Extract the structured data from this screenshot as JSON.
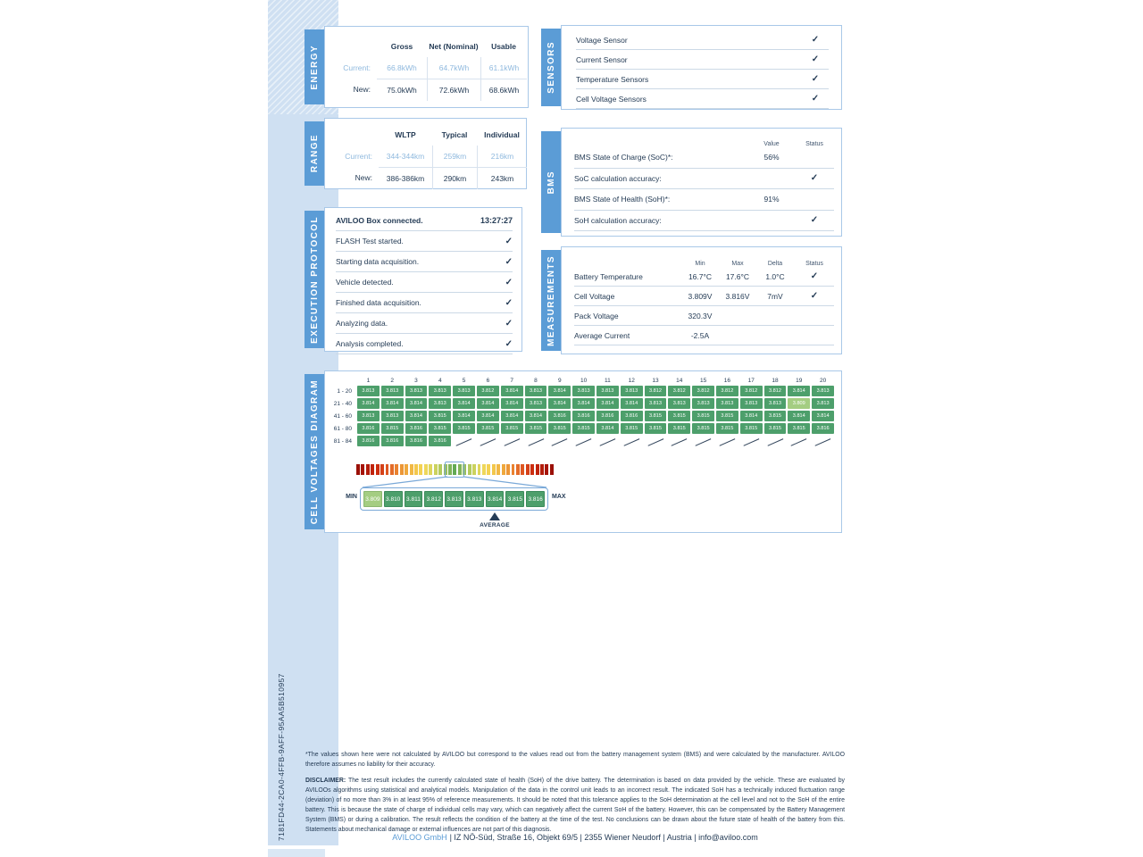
{
  "page": {
    "report_id": "7181FD44-2CA0-4FFB-9AFF-95AA5B510957",
    "footnote": "*The values shown here were not calculated by AVILOO but correspond to the values read out from the battery management system (BMS) and were calculated by the manufacturer. AVILOO therefore assumes no liability for their accuracy.",
    "disclaimer_label": "DISCLAIMER:",
    "disclaimer_text": " The test result includes the currently calculated state of health (SoH) of the drive battery. The determination is based on data provided by the vehicle. These are evaluated by AVILOOs algorithms using statistical and analytical models. Manipulation of the data in the control unit leads to an incorrect result. The indicated SoH has a technically induced fluctuation range (deviation) of no more than 3% in at least 95% of reference measurements. It should be noted that this tolerance applies to the SoH determination at the cell level and not to the SoH of the entire battery. This is because the state of charge of individual cells may vary, which can negatively affect the current SoH of the battery. However, this can be compensated by the Battery Management System (BMS) or during a calibration. The result reflects the condition of the battery at the time of the test. No conclusions can be drawn about the future state of health of the battery from this. Statements about mechanical damage or external influences are not part of this diagnosis.",
    "footer_company": "AVILOO GmbH",
    "footer_rest": "| IZ NÖ-Süd, Straße 16, Objekt 69/5 | 2355 Wiener Neudorf | Austria | info@aviloo.com"
  },
  "colors": {
    "accent_blue": "#5b9cd6",
    "dark_navy": "#253c56",
    "muted_blue_text": "#8fb9de",
    "cell_green": "#4d9f6b",
    "cell_green_min": "#a4cd82",
    "box_border": "#a9c8e8"
  },
  "energy": {
    "title": "ENERGY",
    "headers": [
      "Gross",
      "Net (Nominal)",
      "Usable"
    ],
    "rows": [
      {
        "label": "Current:",
        "values": [
          "66.8kWh",
          "64.7kWh",
          "61.1kWh"
        ],
        "muted": true
      },
      {
        "label": "New:",
        "values": [
          "75.0kWh",
          "72.6kWh",
          "68.6kWh"
        ],
        "muted": false
      }
    ]
  },
  "range": {
    "title": "RANGE",
    "headers": [
      "WLTP",
      "Typical",
      "Individual"
    ],
    "rows": [
      {
        "label": "Current:",
        "values": [
          "344-344km",
          "259km",
          "216km"
        ],
        "muted": true
      },
      {
        "label": "New:",
        "values": [
          "386-386km",
          "290km",
          "243km"
        ],
        "muted": false
      }
    ]
  },
  "sensors": {
    "title": "SENSORS",
    "rows": [
      {
        "label": "Voltage Sensor",
        "check": true
      },
      {
        "label": "Current Sensor",
        "check": true
      },
      {
        "label": "Temperature Sensors",
        "check": true
      },
      {
        "label": "Cell Voltage Sensors",
        "check": true
      }
    ]
  },
  "bms": {
    "title": "BMS",
    "col_headers": [
      "Value",
      "Status"
    ],
    "rows": [
      {
        "label": "BMS State of Charge (SoC)*:",
        "value": "56%",
        "check": false
      },
      {
        "label": "SoC calculation accuracy:",
        "value": "",
        "check": true
      },
      {
        "label": "BMS State of Health (SoH)*:",
        "value": "91%",
        "check": false
      },
      {
        "label": "SoH calculation accuracy:",
        "value": "",
        "check": true
      }
    ]
  },
  "execution_protocol": {
    "title": "EXECUTION PROTOCOL",
    "first_row": {
      "label": "AVILOO Box connected.",
      "time": "13:27:27"
    },
    "steps": [
      {
        "label": "FLASH Test started.",
        "check": true
      },
      {
        "label": "Starting data acquisition.",
        "check": true
      },
      {
        "label": "Vehicle detected.",
        "check": true
      },
      {
        "label": "Finished data acquisition.",
        "check": true
      },
      {
        "label": "Analyzing data.",
        "check": true
      },
      {
        "label": "Analysis completed.",
        "check": true
      }
    ]
  },
  "measurements": {
    "title": "MEASUREMENTS",
    "col_headers": [
      "Min",
      "Max",
      "Delta",
      "Status"
    ],
    "rows": [
      {
        "label": "Battery Temperature",
        "min": "16.7°C",
        "max": "17.6°C",
        "delta": "1.0°C",
        "check": true
      },
      {
        "label": "Cell Voltage",
        "min": "3.809V",
        "max": "3.816V",
        "delta": "7mV",
        "check": true
      },
      {
        "label": "Pack Voltage",
        "min": "320.3V",
        "max": "",
        "delta": "",
        "check": false
      },
      {
        "label": "Average Current",
        "min": "-2.5A",
        "max": "",
        "delta": "",
        "check": false
      }
    ]
  },
  "cell_voltages": {
    "title": "CELL VOLTAGES DIAGRAM",
    "col_headers": [
      "1",
      "2",
      "3",
      "4",
      "5",
      "6",
      "7",
      "8",
      "9",
      "10",
      "11",
      "12",
      "13",
      "14",
      "15",
      "16",
      "17",
      "18",
      "19",
      "20"
    ],
    "min_value": "3.809",
    "rows": [
      {
        "label": "1 - 20",
        "values": [
          "3.813",
          "3.813",
          "3.813",
          "3.813",
          "3.813",
          "3.812",
          "3.814",
          "3.813",
          "3.814",
          "3.813",
          "3.813",
          "3.813",
          "3.812",
          "3.812",
          "3.812",
          "3.812",
          "3.812",
          "3.812",
          "3.814",
          "3.813"
        ]
      },
      {
        "label": "21 - 40",
        "values": [
          "3.814",
          "3.814",
          "3.814",
          "3.813",
          "3.814",
          "3.814",
          "3.814",
          "3.813",
          "3.814",
          "3.814",
          "3.814",
          "3.814",
          "3.813",
          "3.813",
          "3.813",
          "3.813",
          "3.813",
          "3.813",
          "3.809",
          "3.813"
        ]
      },
      {
        "label": "41 - 60",
        "values": [
          "3.813",
          "3.813",
          "3.814",
          "3.815",
          "3.814",
          "3.814",
          "3.814",
          "3.814",
          "3.816",
          "3.816",
          "3.816",
          "3.816",
          "3.815",
          "3.815",
          "3.815",
          "3.815",
          "3.814",
          "3.815",
          "3.814",
          "3.814"
        ]
      },
      {
        "label": "61 - 80",
        "values": [
          "3.816",
          "3.815",
          "3.816",
          "3.815",
          "3.815",
          "3.815",
          "3.815",
          "3.815",
          "3.815",
          "3.815",
          "3.814",
          "3.815",
          "3.815",
          "3.815",
          "3.815",
          "3.815",
          "3.815",
          "3.815",
          "3.815",
          "3.816"
        ]
      },
      {
        "label": "81 - 84",
        "values": [
          "3.816",
          "3.816",
          "3.816",
          "3.816",
          null,
          null,
          null,
          null,
          null,
          null,
          null,
          null,
          null,
          null,
          null,
          null,
          null,
          null,
          null,
          null
        ]
      }
    ],
    "colorbar": [
      "#9b1007",
      "#a61509",
      "#b31c0b",
      "#c0240d",
      "#cc2e10",
      "#d54119",
      "#de5722",
      "#e46c29",
      "#e98230",
      "#ec9636",
      "#efa83d",
      "#f1b844",
      "#f3c74b",
      "#f4d252",
      "#eed75a",
      "#dfd65d",
      "#cbd25e",
      "#b3ca5d",
      "#9ac05b",
      "#80b558",
      "#64aa54",
      "#80b558",
      "#9ac05b",
      "#b3ca5d",
      "#cbd25e",
      "#dfd65d",
      "#eed75a",
      "#f4d252",
      "#f3c74b",
      "#f1b844",
      "#efa83d",
      "#ec9636",
      "#e98230",
      "#e46c29",
      "#de5722",
      "#d54119",
      "#cc2e10",
      "#c0240d",
      "#b31c0b",
      "#a61509",
      "#9b1007"
    ],
    "scale": {
      "min_label": "MIN",
      "max_label": "MAX",
      "average_label": "AVERAGE",
      "cells": [
        "3.809",
        "3.810",
        "3.811",
        "3.812",
        "3.813",
        "3.813",
        "3.814",
        "3.815",
        "3.816"
      ],
      "average_index": 6
    }
  }
}
